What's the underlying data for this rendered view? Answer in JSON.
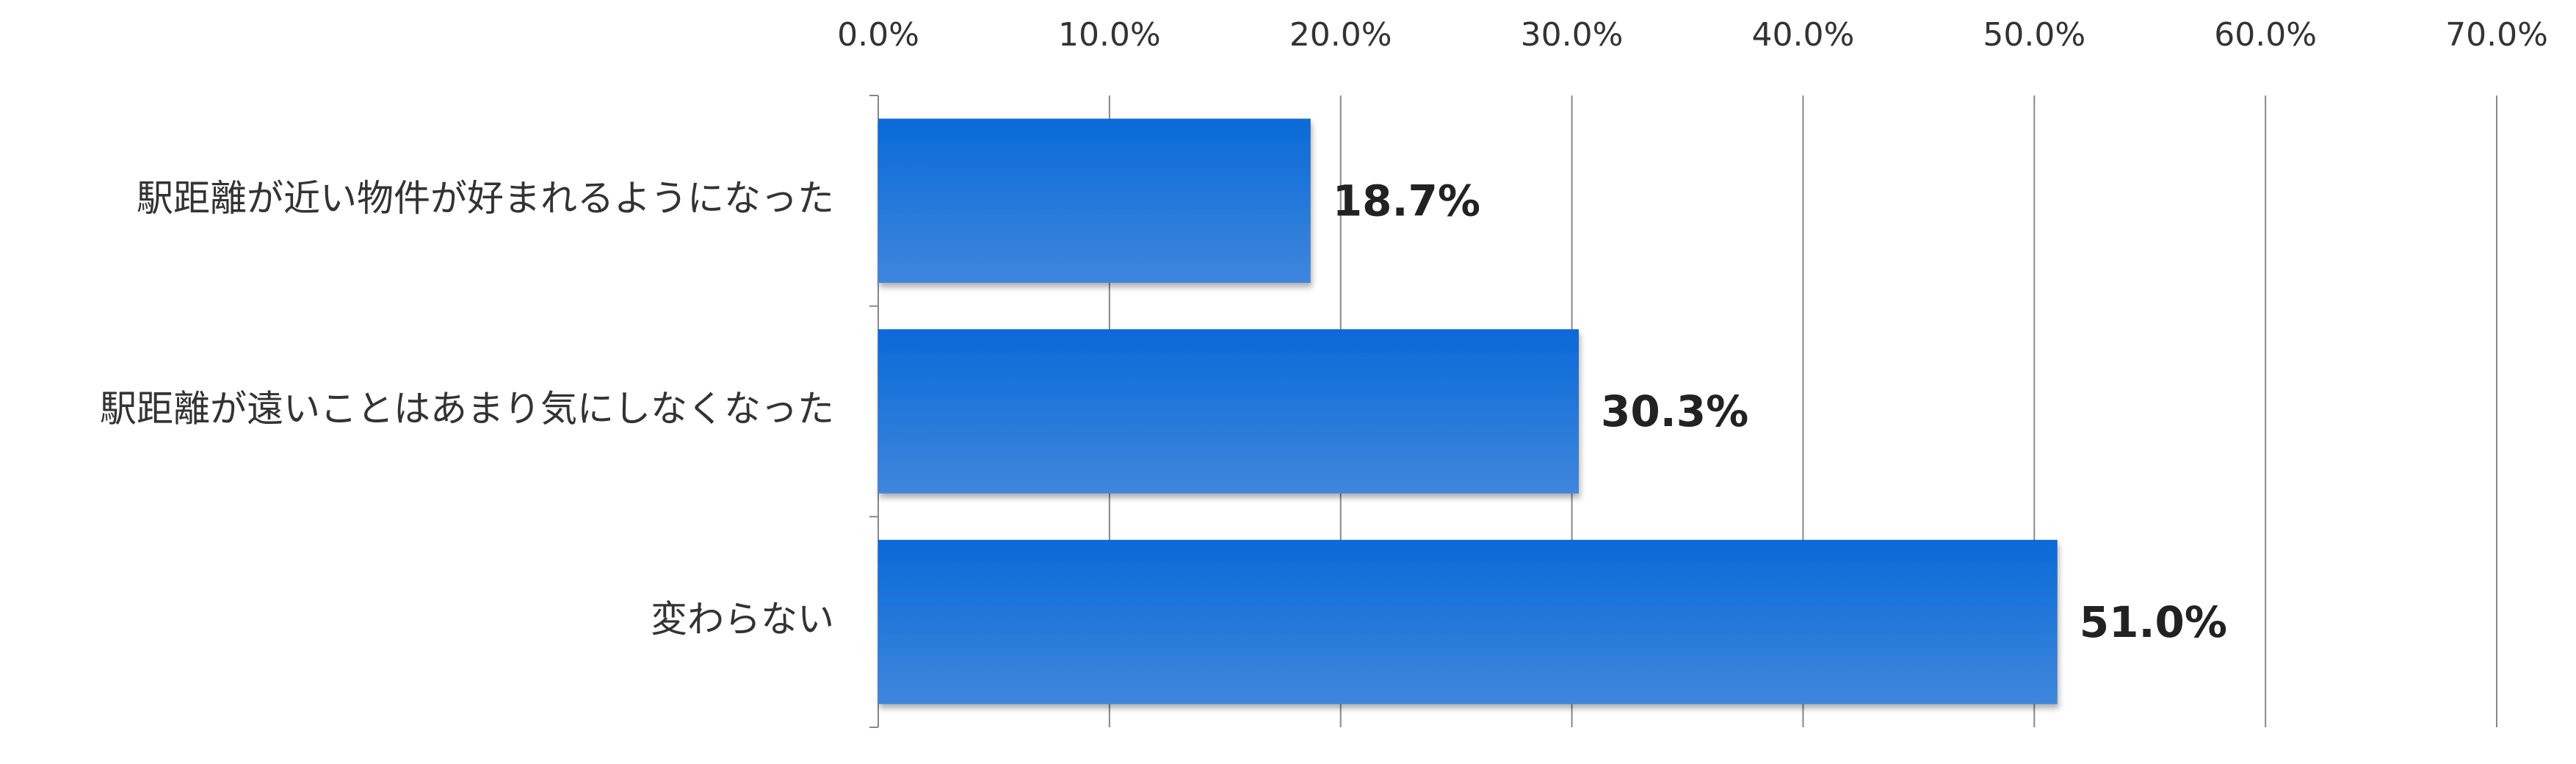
{
  "chart_data": {
    "type": "bar",
    "orientation": "horizontal",
    "categories": [
      "駅距離が近い物件が好まれるようになった",
      "駅距離が遠いことはあまり気にしなくなった",
      "変わらない"
    ],
    "values": [
      18.7,
      30.3,
      51.0
    ],
    "value_labels": [
      "18.7%",
      "30.3%",
      "51.0%"
    ],
    "color": "#0a6ad8",
    "xlim": [
      0,
      70
    ],
    "xticks": [
      {
        "value": 0,
        "label": "0.0%"
      },
      {
        "value": 10,
        "label": "10.0%"
      },
      {
        "value": 20,
        "label": "20.0%"
      },
      {
        "value": 30,
        "label": "30.0%"
      },
      {
        "value": 40,
        "label": "40.0%"
      },
      {
        "value": 50,
        "label": "50.0%"
      },
      {
        "value": 60,
        "label": "60.0%"
      },
      {
        "value": 70,
        "label": "70.0%"
      }
    ],
    "grid": true
  }
}
